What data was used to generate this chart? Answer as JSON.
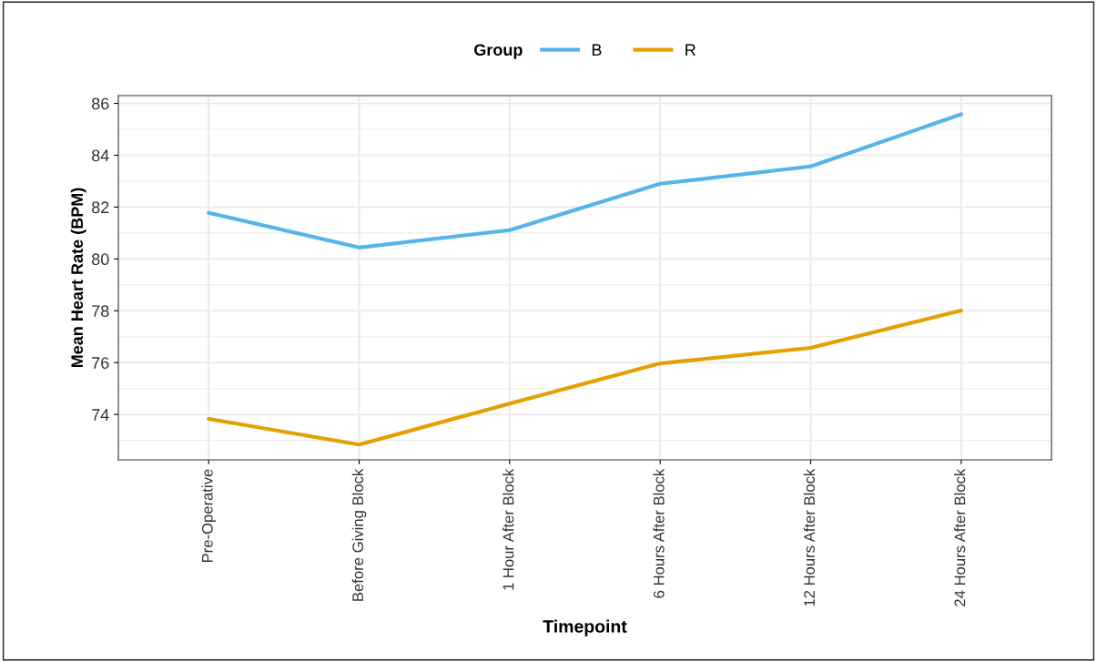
{
  "chart_data": {
    "type": "line",
    "xlabel": "Timepoint",
    "ylabel": "Mean Heart Rate (BPM)",
    "legend_title": "Group",
    "categories": [
      "Pre-Operative",
      "Before Giving Block",
      "1 Hour After Block",
      "6 Hours After Block",
      "12 Hours After Block",
      "24 Hours After Block"
    ],
    "series": [
      {
        "name": "B",
        "color": "#56b4e9",
        "values": [
          81.78,
          80.44,
          81.11,
          82.9,
          83.57,
          85.58
        ]
      },
      {
        "name": "R",
        "color": "#e69f00",
        "values": [
          73.83,
          72.84,
          74.42,
          75.97,
          76.57,
          78.01
        ]
      }
    ],
    "ylim": [
      72.25,
      86.3
    ],
    "yticks": [
      {
        "value": 73,
        "label": null
      },
      74,
      {
        "value": 75,
        "label": null
      },
      76,
      {
        "value": 77,
        "label": null
      },
      78,
      {
        "value": 79,
        "label": null
      },
      80,
      {
        "value": 81,
        "label": null
      },
      82,
      {
        "value": 83,
        "label": null
      },
      84,
      {
        "value": 85,
        "label": null
      },
      86
    ],
    "grid": true,
    "legend": "top",
    "marker": "none",
    "line_style": "solid"
  }
}
